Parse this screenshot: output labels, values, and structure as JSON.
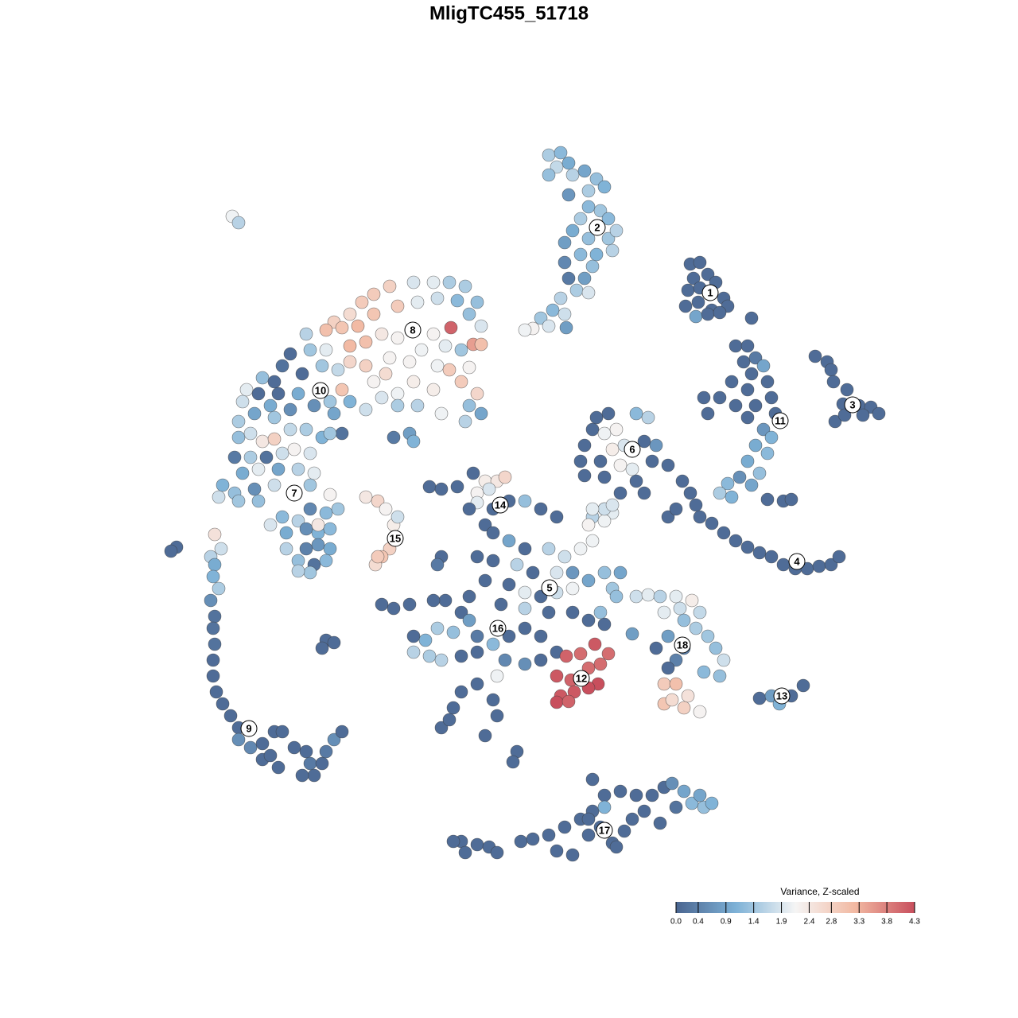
{
  "chart_data": {
    "type": "scatter",
    "title": "MligTC455_51718",
    "xlim": [
      0,
      1280
    ],
    "ylim": [
      1280,
      0
    ],
    "x": [
      868,
      880,
      872,
      890,
      865,
      880,
      900,
      862,
      878,
      895,
      910,
      915,
      875,
      890,
      905,
      945,
      690,
      705,
      700,
      715,
      690,
      720,
      735,
      750,
      760,
      740,
      715,
      740,
      755,
      765,
      730,
      720,
      740,
      765,
      775,
      710,
      730,
      750,
      770,
      745,
      710,
      715,
      735,
      725,
      740,
      705,
      695,
      710,
      680,
      670,
      690,
      712,
      660,
      1025,
      1040,
      1045,
      1048,
      1065,
      1060,
      1080,
      1095,
      1105,
      1050,
      1062,
      1085,
      925,
      940,
      935,
      950,
      960,
      945,
      965,
      920,
      940,
      905,
      885,
      925,
      950,
      970,
      890,
      940,
      960,
      950,
      965,
      970,
      940,
      955,
      945,
      915,
      905,
      920,
      930,
      965,
      985,
      995,
      975,
      858,
      868,
      875,
      880,
      895,
      910,
      925,
      940,
      955,
      970,
      985,
      1000,
      1015,
      1030,
      1045,
      1055,
      840,
      850,
      750,
      765,
      745,
      760,
      775,
      800,
      815,
      735,
      770,
      785,
      810,
      825,
      730,
      755,
      780,
      795,
      820,
      840,
      735,
      760,
      800,
      780,
      810,
      760,
      745,
      770,
      490,
      520,
      545,
      565,
      585,
      600,
      470,
      455,
      440,
      420,
      410,
      430,
      450,
      470,
      500,
      525,
      550,
      575,
      590,
      605,
      567,
      595,
      605,
      440,
      460,
      480,
      500,
      545,
      530,
      560,
      580,
      440,
      460,
      490,
      515,
      550,
      565,
      590,
      485,
      520,
      545,
      580,
      600,
      470,
      500,
      525,
      555,
      590,
      605,
      585,
      385,
      365,
      390,
      410,
      405,
      425,
      380,
      355,
      330,
      345,
      310,
      325,
      350,
      375,
      395,
      415,
      430,
      440,
      460,
      420,
      365,
      340,
      305,
      320,
      300,
      345,
      480,
      500,
      430,
      495,
      515,
      520,
      300,
      315,
      330,
      345,
      365,
      385,
      405,
      415,
      295,
      315,
      335,
      355,
      370,
      390,
      305,
      325,
      350,
      375,
      395,
      280,
      295,
      320,
      345,
      390,
      275,
      300,
      325,
      415,
      390,
      410,
      425,
      340,
      355,
      375,
      360,
      385,
      400,
      415,
      360,
      385,
      400,
      415,
      375,
      395,
      410,
      390,
      375,
      400,
      270,
      278,
      265,
      270,
      268,
      275,
      265,
      270,
      268,
      270,
      268,
      268,
      272,
      280,
      290,
      300,
      300,
      315,
      330,
      345,
      355,
      330,
      350,
      340,
      370,
      385,
      390,
      405,
      395,
      380,
      410,
      420,
      430,
      222,
      215,
      410,
      405,
      420,
      460,
      475,
      485,
      495,
      500,
      490,
      480,
      472,
      475,
      540,
      555,
      575,
      595,
      610,
      625,
      635,
      600,
      615,
      600,
      590,
      620,
      640,
      660,
      680,
      700,
      610,
      555,
      550,
      620,
      640,
      660,
      690,
      710,
      730,
      745,
      740,
      760,
      760,
      745,
      770,
      600,
      620,
      650,
      670,
      700,
      720,
      740,
      610,
      640,
      660,
      680,
      700,
      720,
      760,
      780,
      770,
      590,
      560,
      545,
      580,
      630,
      660,
      690,
      720,
      740,
      760,
      480,
      495,
      515,
      520,
      535,
      550,
      570,
      590,
      600,
      620,
      640,
      660,
      680,
      520,
      540,
      555,
      580,
      600,
      635,
      660,
      680,
      700,
      625,
      600,
      580,
      570,
      555,
      565,
      620,
      625,
      610,
      650,
      645,
      795,
      755,
      775,
      712,
      730,
      748,
      765,
      700,
      718,
      740,
      752,
      705,
      722,
      740,
      700,
      715,
      755,
      800,
      815,
      830,
      850,
      870,
      855,
      835,
      880,
      860,
      840,
      825,
      860,
      875,
      890,
      900,
      910,
      905,
      885,
      850,
      840,
      835,
      850,
      865,
      835,
      860,
      880,
      845,
      955,
      970,
      980,
      995,
      1010,
      580,
      600,
      585,
      615,
      625,
      655,
      670,
      690,
      700,
      720,
      710,
      730,
      745,
      755,
      770,
      785,
      795,
      810,
      800,
      820,
      745,
      760,
      780,
      835,
      845,
      860,
      870,
      885,
      895,
      880,
      850,
      830,
      760,
      740,
      740,
      775,
      570,
      292,
      300
    ],
    "y": [
      332,
      330,
      350,
      345,
      365,
      362,
      355,
      385,
      380,
      390,
      375,
      385,
      398,
      395,
      393,
      400,
      195,
      192,
      210,
      205,
      220,
      220,
      215,
      225,
      235,
      240,
      245,
      260,
      265,
      275,
      275,
      290,
      300,
      300,
      290,
      305,
      320,
      320,
      315,
      335,
      330,
      350,
      350,
      365,
      368,
      375,
      390,
      395,
      400,
      413,
      410,
      412,
      415,
      448,
      455,
      465,
      480,
      490,
      508,
      510,
      512,
      520,
      530,
      522,
      522,
      435,
      435,
      455,
      450,
      460,
      470,
      480,
      480,
      490,
      500,
      500,
      510,
      510,
      500,
      520,
      525,
      540,
      560,
      570,
      550,
      580,
      595,
      610,
      608,
      620,
      625,
      600,
      628,
      630,
      628,
      520,
      605,
      620,
      635,
      650,
      658,
      670,
      680,
      688,
      695,
      700,
      710,
      715,
      715,
      712,
      710,
      700,
      650,
      640,
      525,
      520,
      540,
      545,
      540,
      520,
      525,
      560,
      565,
      560,
      555,
      560,
      580,
      580,
      585,
      590,
      580,
      585,
      598,
      600,
      605,
      620,
      620,
      640,
      650,
      645,
      360,
      355,
      355,
      355,
      360,
      380,
      370,
      380,
      395,
      405,
      415,
      412,
      410,
      395,
      385,
      380,
      375,
      378,
      395,
      410,
      412,
      433,
      433,
      435,
      430,
      420,
      425,
      420,
      440,
      435,
      440,
      455,
      460,
      450,
      455,
      460,
      465,
      462,
      470,
      480,
      490,
      480,
      495,
      480,
      495,
      510,
      520,
      510,
      520,
      530,
      420,
      445,
      440,
      440,
      460,
      465,
      470,
      460,
      475,
      480,
      490,
      495,
      495,
      495,
      510,
      505,
      490,
      505,
      515,
      520,
      515,
      510,
      505,
      520,
      530,
      525,
      500,
      510,
      545,
      550,
      545,
      555,
      550,
      545,
      555,
      552,
      540,
      540,
      550,
      545,
      575,
      575,
      575,
      570,
      565,
      570,
      595,
      590,
      590,
      590,
      595,
      610,
      620,
      615,
      610,
      610,
      625,
      630,
      630,
      622,
      640,
      645,
      640,
      660,
      650,
      655,
      670,
      665,
      670,
      665,
      690,
      690,
      685,
      690,
      705,
      710,
      705,
      720,
      718,
      660,
      672,
      690,
      700,
      710,
      725,
      740,
      755,
      775,
      790,
      810,
      830,
      850,
      870,
      885,
      900,
      915,
      930,
      940,
      935,
      920,
      920,
      955,
      965,
      950,
      940,
      945,
      960,
      960,
      975,
      975,
      945,
      930,
      920,
      688,
      693,
      805,
      815,
      808,
      625,
      630,
      640,
      660,
      650,
      690,
      700,
      710,
      700,
      612,
      615,
      612,
      595,
      605,
      605,
      600,
      620,
      615,
      632,
      640,
      640,
      630,
      630,
      640,
      650,
      660,
      700,
      710,
      670,
      680,
      690,
      690,
      700,
      690,
      680,
      660,
      655,
      640,
      640,
      635,
      700,
      705,
      710,
      720,
      720,
      720,
      730,
      730,
      735,
      745,
      750,
      745,
      740,
      720,
      720,
      740,
      750,
      755,
      755,
      770,
      760,
      765,
      770,
      770,
      780,
      785,
      760,
      765,
      760,
      800,
      805,
      790,
      795,
      780,
      800,
      810,
      800,
      790,
      800,
      820,
      825,
      830,
      825,
      820,
      830,
      835,
      830,
      820,
      850,
      860,
      870,
      890,
      915,
      905,
      880,
      900,
      925,
      945,
      958,
      797,
      770,
      750,
      825,
      822,
      810,
      822,
      850,
      855,
      840,
      860,
      875,
      870,
      865,
      883,
      882,
      835,
      750,
      748,
      750,
      750,
      755,
      765,
      770,
      770,
      780,
      800,
      815,
      815,
      790,
      800,
      815,
      830,
      850,
      845,
      830,
      840,
      860,
      860,
      875,
      885,
      890,
      895,
      880,
      878,
      875,
      885,
      875,
      862,
      1058,
      1062,
      1072,
      1065,
      1072,
      1058,
      1055,
      1050,
      1070,
      1075,
      1040,
      1030,
      1020,
      1040,
      1060,
      1045,
      1030,
      1020,
      1000,
      1000,
      980,
      1000,
      995,
      990,
      985,
      995,
      1010,
      1015,
      1010,
      1000,
      1015,
      1035,
      1015,
      1050,
      1030,
      1065,
      1058,
      272,
      280
    ],
    "values": [
      0.1,
      0.1,
      0.1,
      0.1,
      0.1,
      0.1,
      0.1,
      0.1,
      0.1,
      0.1,
      0.1,
      0.1,
      0.9,
      0.1,
      0.1,
      0.1,
      1.5,
      1.2,
      1.7,
      1.0,
      1.3,
      1.6,
      0.9,
      1.3,
      1.1,
      1.5,
      0.7,
      1.2,
      1.4,
      1.2,
      1.5,
      1.0,
      1.3,
      1.4,
      1.6,
      0.8,
      1.2,
      1.1,
      1.6,
      1.3,
      0.5,
      0.3,
      0.8,
      1.5,
      1.9,
      1.6,
      1.2,
      1.8,
      1.4,
      2.2,
      1.9,
      0.8,
      2.1,
      0.1,
      0.1,
      0.1,
      0.1,
      0.1,
      0.1,
      0.1,
      0.1,
      0.1,
      0.1,
      0.1,
      0.1,
      0.1,
      0.1,
      0.1,
      0.3,
      0.9,
      0.1,
      0.1,
      0.1,
      0.1,
      0.1,
      0.1,
      0.1,
      0.1,
      0.1,
      0.1,
      0.1,
      0.7,
      1.0,
      1.2,
      1.1,
      1.0,
      1.3,
      0.9,
      1.2,
      1.5,
      1.1,
      0.6,
      0.1,
      0.1,
      0.1,
      0.1,
      0.1,
      0.1,
      0.1,
      0.1,
      0.1,
      0.1,
      0.1,
      0.1,
      0.1,
      0.1,
      0.1,
      0.1,
      0.1,
      0.1,
      0.1,
      0.1,
      0.1,
      0.1,
      0.1,
      0.1,
      0.1,
      2.1,
      2.2,
      1.2,
      1.6,
      0.1,
      2.3,
      1.9,
      0.1,
      0.7,
      0.1,
      0.1,
      2.2,
      2.0,
      0.1,
      0.1,
      0.1,
      0.1,
      0.1,
      0.1,
      0.1,
      1.3,
      1.6,
      2.0,
      2.8,
      1.9,
      2.0,
      1.5,
      1.5,
      1.3,
      2.9,
      2.9,
      2.6,
      2.8,
      3.1,
      3.0,
      3.2,
      3.0,
      2.9,
      2.0,
      1.8,
      1.2,
      1.3,
      1.9,
      4.1,
      3.5,
      3.1,
      3.2,
      3.1,
      2.4,
      2.2,
      2.2,
      2.1,
      2.0,
      1.4,
      2.7,
      2.8,
      2.2,
      2.2,
      2.1,
      2.9,
      2.2,
      2.6,
      2.3,
      2.3,
      2.9,
      2.7,
      2.2,
      2.1,
      1.6,
      2.1,
      1.3,
      0.9,
      1.6,
      1.6,
      0.1,
      1.4,
      2.0,
      1.4,
      1.7,
      0.1,
      0.2,
      1.3,
      0.1,
      2.0,
      0.1,
      0.1,
      1.0,
      0.6,
      1.4,
      3.0,
      1.1,
      1.8,
      0.9,
      0.6,
      1.0,
      1.8,
      0.9,
      1.5,
      1.4,
      1.9,
      1.5,
      0.2,
      0.3,
      0.8,
      1.1,
      1.3,
      1.8,
      2.4,
      2.8,
      1.7,
      1.5,
      1.1,
      1.4,
      0.3,
      1.5,
      0.2,
      1.8,
      2.2,
      1.9,
      1.0,
      2.0,
      0.9,
      1.6,
      2.0,
      1.1,
      1.3,
      0.6,
      1.8,
      1.4,
      1.8,
      1.4,
      1.3,
      2.2,
      0.5,
      1.2,
      1.4,
      1.9,
      1.2,
      1.6,
      1.0,
      0.6,
      1.1,
      1.2,
      1.6,
      0.4,
      0.7,
      1.0,
      1.3,
      0.2,
      1.2,
      1.4,
      1.6,
      2.4,
      2.5,
      1.8,
      1.6,
      1.0,
      1.1,
      1.5,
      0.6,
      0.2,
      0.2,
      0.2,
      0.1,
      0.1,
      0.1,
      0.1,
      0.1,
      0.1,
      0.6,
      0.5,
      0.1,
      0.1,
      0.1,
      0.1,
      0.1,
      0.1,
      0.1,
      0.1,
      0.3,
      0.1,
      0.1,
      0.1,
      0.3,
      0.6,
      0.1,
      0.1,
      0.1,
      0.1,
      0.1,
      0.1,
      2.4,
      2.7,
      2.2,
      2.3,
      1.8,
      2.8,
      3.0,
      2.6,
      2.9,
      0.1,
      0.1,
      0.1,
      0.1,
      2.3,
      2.4,
      2.7,
      2.2,
      1.9,
      2.0,
      0.1,
      0.1,
      0.1,
      1.3,
      0.1,
      0.1,
      0.1,
      0.1,
      0.3,
      0.1,
      0.9,
      0.1,
      1.6,
      1.8,
      2.1,
      2.1,
      2.2,
      2.1,
      1.8,
      2.0,
      1.9,
      0.1,
      0.1,
      1.6,
      0.1,
      1.9,
      0.7,
      0.9,
      0.1,
      0.1,
      2.0,
      0.1,
      1.8,
      2.1,
      1.3,
      0.9,
      1.4,
      0.1,
      0.1,
      0.1,
      0.1,
      0.1,
      1.6,
      0.1,
      0.1,
      0.1,
      0.1,
      0.1,
      0.1,
      0.1,
      0.1,
      1.1,
      1.5,
      1.3,
      0.8,
      0.3,
      1.2,
      0.1,
      0.1,
      0.1,
      1.6,
      1.5,
      1.6,
      0.1,
      0.1,
      0.5,
      0.6,
      0.1,
      0.1,
      2.1,
      0.1,
      0.1,
      0.1,
      0.1,
      0.1,
      0.1,
      0.1,
      0.1,
      0.1,
      0.1,
      0.8,
      1.3,
      1.3,
      4.1,
      4.0,
      4.2,
      4.0,
      4.2,
      4.1,
      4.0,
      4.3,
      4.2,
      4.2,
      4.3,
      4.3,
      4.1,
      4.0,
      1.8,
      2.0,
      1.6,
      2.0,
      2.3,
      1.8,
      2.0,
      1.7,
      1.3,
      0.8,
      0.1,
      0.4,
      1.5,
      1.4,
      1.3,
      1.8,
      1.3,
      1.2,
      0.4,
      0.1,
      2.9,
      3.1,
      2.5,
      3.0,
      2.8,
      2.2,
      2.6,
      0.1,
      0.8,
      1.1,
      0.1,
      0.1,
      0.1,
      0.1,
      0.1,
      0.1,
      0.1,
      0.1,
      0.1,
      0.1,
      0.1,
      0.1,
      0.1,
      0.1,
      0.1,
      0.1,
      0.1,
      0.1,
      0.1,
      0.1,
      0.1,
      0.1,
      0.1,
      0.1,
      0.1,
      0.1,
      0.6,
      0.9,
      1.2,
      1.3,
      1.1,
      0.9,
      0.2,
      0.1,
      1.1,
      0.1,
      0.1,
      0.1,
      0.1,
      2.1,
      1.6
    ],
    "cluster_labels": [
      {
        "text": "1",
        "x": 893,
        "y": 368
      },
      {
        "text": "2",
        "x": 751,
        "y": 286
      },
      {
        "text": "3",
        "x": 1072,
        "y": 509
      },
      {
        "text": "4",
        "x": 1002,
        "y": 706
      },
      {
        "text": "5",
        "x": 691,
        "y": 739
      },
      {
        "text": "6",
        "x": 795,
        "y": 565
      },
      {
        "text": "7",
        "x": 370,
        "y": 620
      },
      {
        "text": "8",
        "x": 519,
        "y": 415
      },
      {
        "text": "9",
        "x": 313,
        "y": 916
      },
      {
        "text": "10",
        "x": 403,
        "y": 491
      },
      {
        "text": "11",
        "x": 981,
        "y": 529
      },
      {
        "text": "12",
        "x": 731,
        "y": 853
      },
      {
        "text": "13",
        "x": 983,
        "y": 875
      },
      {
        "text": "14",
        "x": 629,
        "y": 635
      },
      {
        "text": "15",
        "x": 497,
        "y": 677
      },
      {
        "text": "16",
        "x": 626,
        "y": 790
      },
      {
        "text": "17",
        "x": 760,
        "y": 1044
      },
      {
        "text": "18",
        "x": 858,
        "y": 811
      }
    ],
    "colorbar": {
      "title": "Variance, Z-scaled",
      "clim": [
        0,
        4.3
      ],
      "colors": [
        "#4a6590",
        "#7db1d6",
        "#f5f5f5",
        "#f2b9a2",
        "#c84f5d"
      ],
      "ticks": [
        {
          "value": 0,
          "label": "0.0"
        },
        0.4,
        0.9,
        1.4,
        1.9,
        2.4,
        2.8,
        3.3,
        3.8,
        4.3
      ]
    }
  }
}
